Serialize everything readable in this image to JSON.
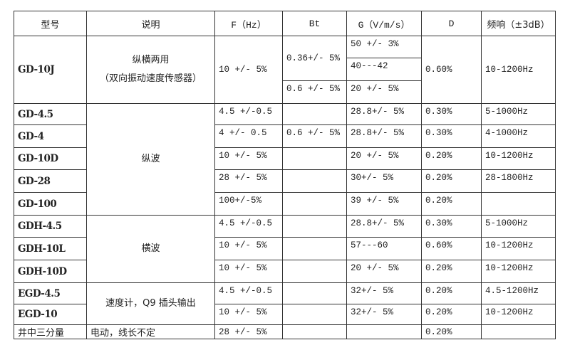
{
  "header": [
    "型号",
    "说明",
    "F（Hz）",
    "Bt",
    "G（V/m/s）",
    "D",
    "频响（±3dB）"
  ],
  "gd10j": {
    "model": "GD-10J",
    "desc_line1": "纵横两用",
    "desc_line2": "（双向振动速度传感器）",
    "f": "10 +/- 5%",
    "bt": [
      "0.36+/- 5%",
      "0.6 +/- 5%"
    ],
    "g": [
      "50 +/- 3%",
      "40---42",
      "20 +/- 5%"
    ],
    "d": "0.60%",
    "freq": "10-1200Hz"
  },
  "groups": [
    {
      "desc": "纵波",
      "rows": [
        {
          "model": "GD-4.5",
          "f": "4.5 +/-0.5",
          "bt": "",
          "g": "28.8+/- 5%",
          "d": "0.30%",
          "freq": "5-1000Hz"
        },
        {
          "model": "GD-4",
          "f": "4 +/- 0.5",
          "bt": "0.6 +/- 5%",
          "g": "28.8+/- 5%",
          "d": "0.30%",
          "freq": "4-1000Hz"
        },
        {
          "model": "GD-10D",
          "f": "10 +/- 5%",
          "bt": "",
          "g": "20 +/- 5%",
          "d": "0.20%",
          "freq": "10-1200Hz"
        },
        {
          "model": "GD-28",
          "f": "28 +/- 5%",
          "bt": "",
          "g": "30+/- 5%",
          "d": "0.20%",
          "freq": "28-1800Hz"
        },
        {
          "model": "GD-100",
          "f": "100+/-5%",
          "bt": "",
          "g": "39 +/- 5%",
          "d": "0.20%",
          "freq": ""
        }
      ]
    },
    {
      "desc": "横波",
      "rows": [
        {
          "model": "GDH-4.5",
          "f": "4.5 +/-0.5",
          "bt": "",
          "g": "28.8+/- 5%",
          "d": "0.30%",
          "freq": "5-1000Hz"
        },
        {
          "model": "GDH-10L",
          "f": "10 +/- 5%",
          "bt": "",
          "g": "57---60",
          "d": "0.60%",
          "freq": "10-1200Hz"
        },
        {
          "model": "GDH-10D",
          "f": "10 +/- 5%",
          "bt": "",
          "g": "20 +/- 5%",
          "d": "0.20%",
          "freq": "10-1200Hz"
        }
      ]
    },
    {
      "desc": "速度计，Q9 插头输出",
      "rows": [
        {
          "model": "EGD-4.5",
          "f": "4.5 +/-0.5",
          "bt": "",
          "g": "32+/- 5%",
          "d": "0.20%",
          "freq": "4.5-1200Hz"
        },
        {
          "model": "EGD-10",
          "f": "10 +/- 5%",
          "bt": "",
          "g": "32+/- 5%",
          "d": "0.20%",
          "freq": "10-1200Hz"
        }
      ]
    }
  ],
  "last_row": {
    "model": "井中三分量",
    "desc": "电动，线长不定",
    "f": "28 +/- 5%",
    "bt": "",
    "g": "",
    "d": "0.20%",
    "freq": ""
  }
}
